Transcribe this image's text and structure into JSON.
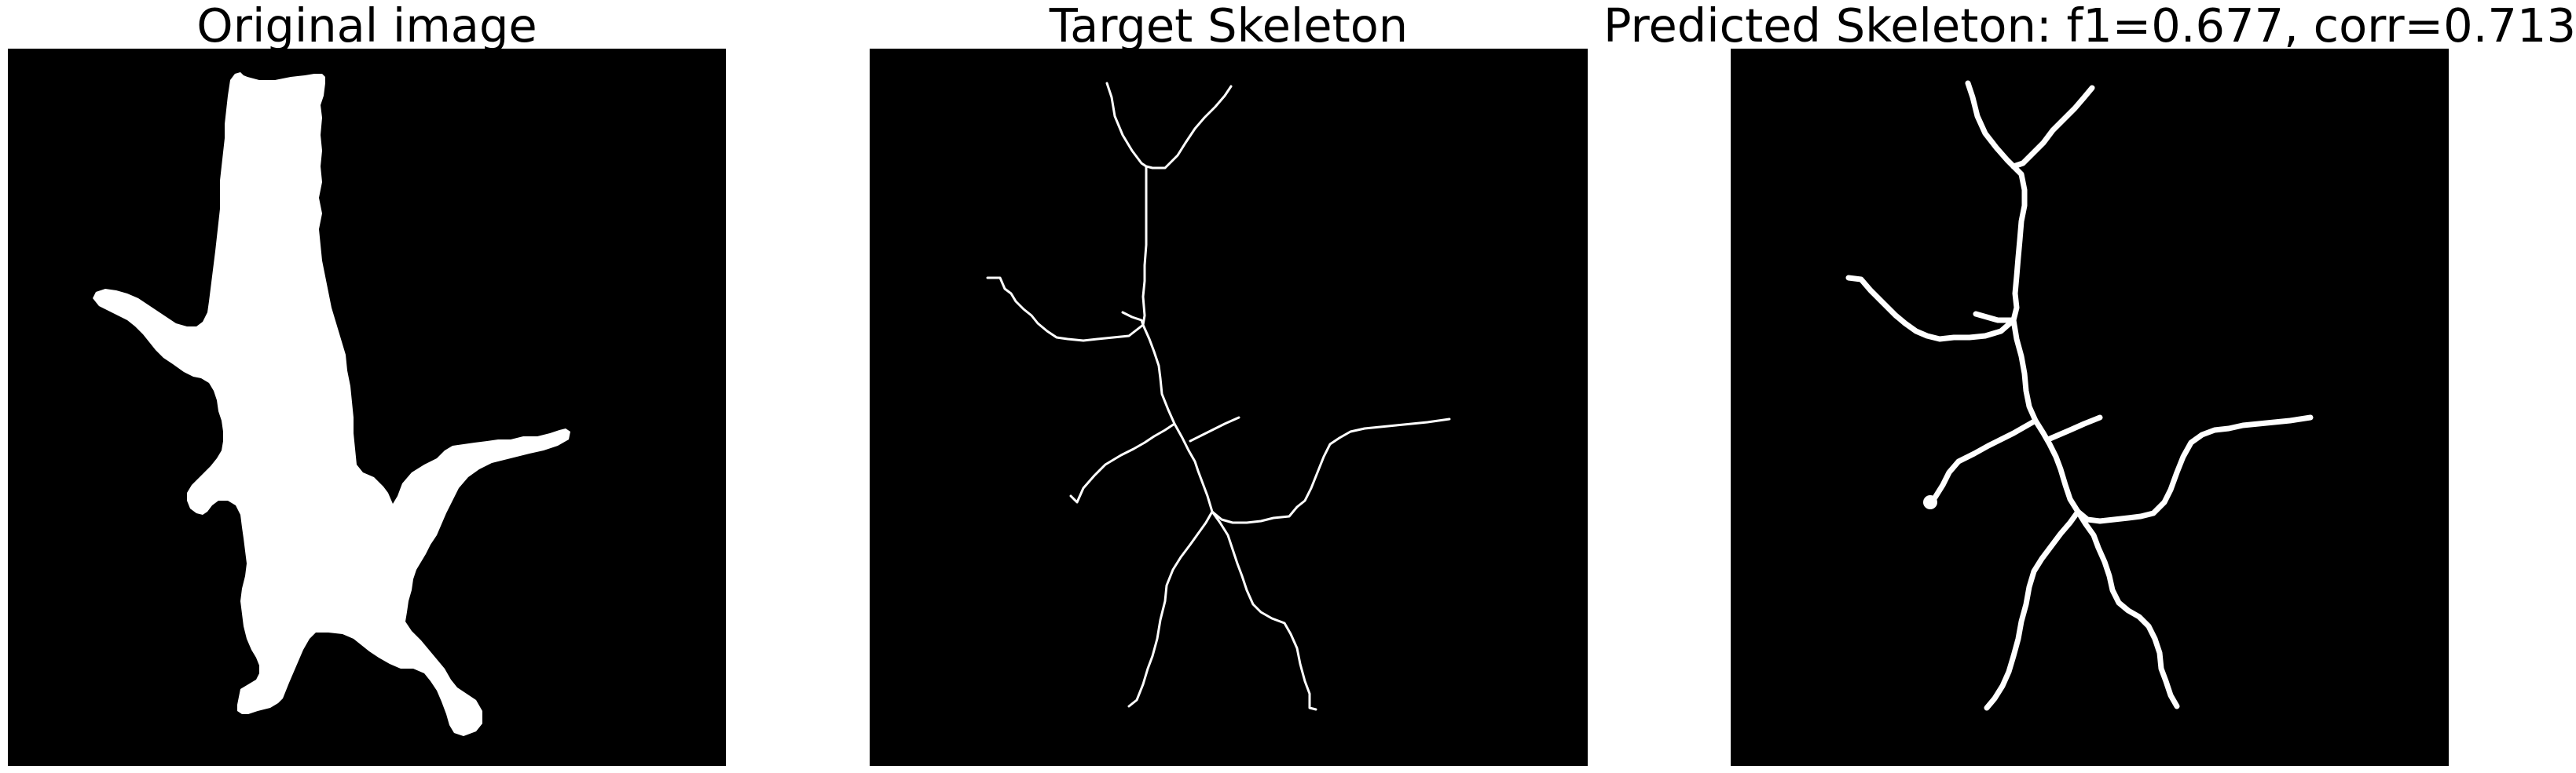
{
  "panels": [
    {
      "title": "Original image",
      "content": "binary-silhouette"
    },
    {
      "title": "Target Skeleton",
      "content": "thin-skeleton"
    },
    {
      "title": "Predicted Skeleton: f1=0.677, corr=0.713",
      "content": "predicted-skeleton"
    }
  ],
  "colors": {
    "background": "#000000",
    "foreground": "#ffffff",
    "page": "#ffffff"
  }
}
